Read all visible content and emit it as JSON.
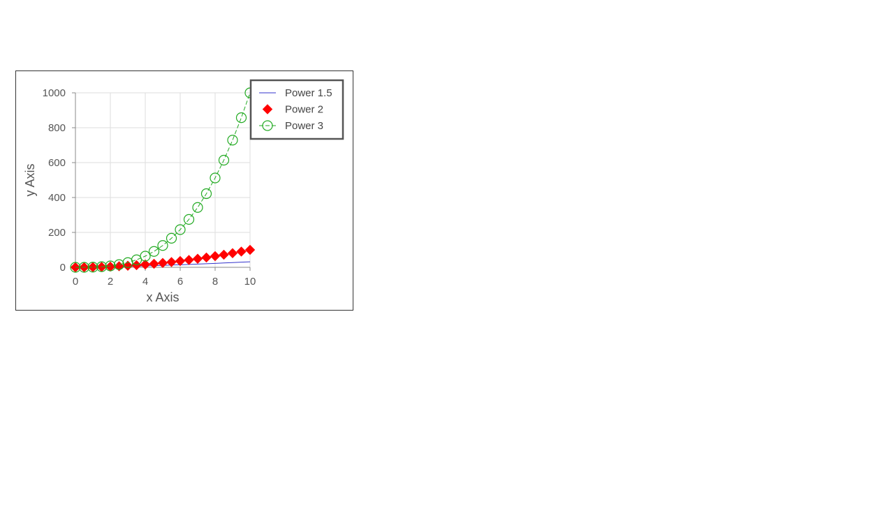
{
  "chart_data": {
    "type": "line",
    "title": "",
    "xlabel": "x Axis",
    "ylabel": "y Axis",
    "xlim": [
      0,
      10
    ],
    "ylim": [
      0,
      1000
    ],
    "xticks": [
      0,
      2,
      4,
      6,
      8,
      10
    ],
    "yticks": [
      0,
      200,
      400,
      600,
      800,
      1000
    ],
    "grid": true,
    "legend_position": "top-right",
    "x": [
      0,
      0.5,
      1,
      1.5,
      2,
      2.5,
      3,
      3.5,
      4,
      4.5,
      5,
      5.5,
      6,
      6.5,
      7,
      7.5,
      8,
      8.5,
      9,
      9.5,
      10
    ],
    "series": [
      {
        "name": "Power 1.5",
        "color": "#3333cc",
        "marker": "none",
        "line": "solid",
        "values": [
          0,
          0.35,
          1,
          1.84,
          2.83,
          3.95,
          5.2,
          6.55,
          8,
          9.55,
          11.18,
          12.9,
          14.7,
          16.57,
          18.52,
          20.54,
          22.63,
          24.78,
          27,
          29.28,
          31.62
        ]
      },
      {
        "name": "Power 2",
        "color": "#ff0000",
        "marker": "diamond",
        "line": "none",
        "values": [
          0,
          0.25,
          1,
          2.25,
          4,
          6.25,
          9,
          12.25,
          16,
          20.25,
          25,
          30.25,
          36,
          42.25,
          49,
          56.25,
          64,
          72.25,
          81,
          90.25,
          100
        ]
      },
      {
        "name": "Power 3",
        "color": "#22aa22",
        "marker": "circle-open",
        "line": "dashed",
        "values": [
          0,
          0.125,
          1,
          3.375,
          8,
          15.625,
          27,
          42.875,
          64,
          91.125,
          125,
          166.375,
          216,
          274.625,
          343,
          421.875,
          512,
          614.125,
          729,
          857.375,
          1000
        ]
      }
    ]
  }
}
